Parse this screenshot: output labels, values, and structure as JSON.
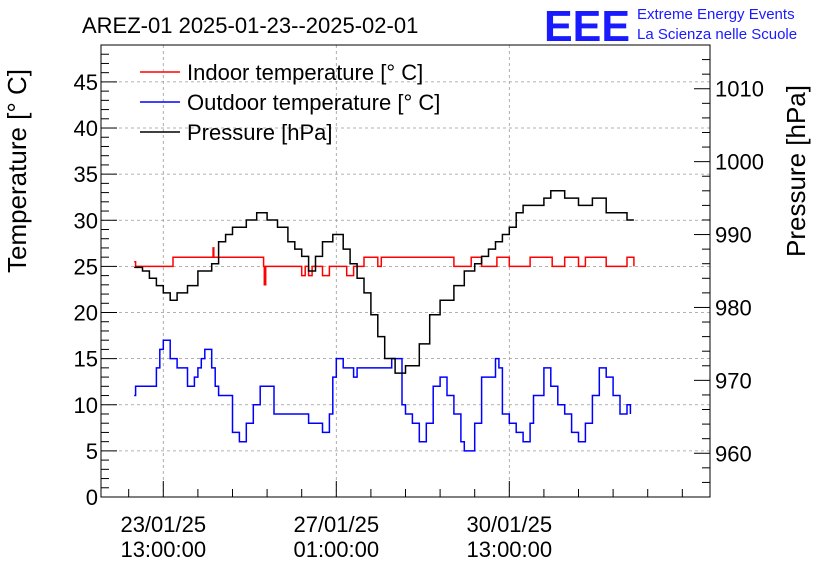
{
  "title": "AREZ-01 2025-01-23--2025-02-01",
  "logo": {
    "mark": "EEE",
    "line1": "Extreme Energy Events",
    "line2": "La Scienza nelle Scuole",
    "color": "#1a1aff"
  },
  "chart_data": {
    "type": "line",
    "title": "AREZ-01 2025-01-23--2025-02-01",
    "ylabel": "Temperature [° C]",
    "y2label": "Pressure [hPa]",
    "xlabel": "",
    "ylim": [
      0,
      49
    ],
    "y2lim": [
      954,
      1016
    ],
    "xlim_days": [
      -0.9,
      7.9
    ],
    "yticks": [
      0,
      5,
      10,
      15,
      20,
      25,
      30,
      35,
      40,
      45
    ],
    "y2ticks": [
      960,
      970,
      980,
      990,
      1000,
      1010
    ],
    "xticks": [
      {
        "day": 0,
        "label1": "23/01/25",
        "label2": "13:00:00"
      },
      {
        "day": 2.5,
        "label1": "27/01/25",
        "label2": "01:00:00"
      },
      {
        "day": 5,
        "label1": "30/01/25",
        "label2": "13:00:00"
      }
    ],
    "grid": true,
    "legend_position": "top-left",
    "series": [
      {
        "name": "Indoor temperature [° C]",
        "color": "#ff0000",
        "axis": "left",
        "x": [
          -0.42,
          -0.4,
          0.1,
          0.14,
          0.7,
          0.72,
          0.73,
          0.75,
          1.05,
          1.1,
          1.4,
          1.45,
          1.46,
          1.48,
          1.6,
          2.0,
          2.05,
          2.1,
          2.15,
          2.25,
          2.3,
          2.4,
          2.45,
          2.6,
          2.65,
          2.75,
          2.85,
          2.9,
          3.05,
          3.1,
          3.15,
          3.2,
          3.5,
          3.55,
          3.6,
          3.65,
          3.9,
          4.1,
          4.2,
          4.4,
          4.45,
          4.55,
          4.6,
          4.8,
          4.82,
          4.95,
          5.0,
          5.2,
          5.3,
          5.6,
          5.62,
          5.75,
          5.8,
          5.9,
          6.0,
          6.05,
          6.1,
          6.35,
          6.4,
          6.65,
          6.7,
          6.75,
          6.8
        ],
        "y": [
          25.5,
          25,
          25,
          26,
          26,
          27,
          26,
          26,
          26,
          26,
          26,
          25,
          23,
          25,
          25,
          24,
          25,
          24,
          25,
          25,
          24,
          25,
          25,
          25,
          24,
          25,
          25,
          26,
          26,
          25,
          26,
          26,
          26,
          26,
          26,
          26,
          26,
          26,
          25,
          25,
          26,
          26,
          25,
          25,
          26,
          26,
          25,
          25,
          26,
          26,
          25,
          25,
          26,
          26,
          25,
          25,
          26,
          26,
          25,
          25,
          26,
          26,
          25
        ]
      },
      {
        "name": "Outdoor temperature [° C]",
        "color": "#0000ff",
        "axis": "left",
        "x": [
          -0.42,
          -0.4,
          -0.2,
          -0.1,
          -0.05,
          0.0,
          0.1,
          0.2,
          0.3,
          0.35,
          0.45,
          0.5,
          0.55,
          0.6,
          0.7,
          0.75,
          0.8,
          1.0,
          1.1,
          1.2,
          1.3,
          1.4,
          1.5,
          1.6,
          1.8,
          2.0,
          2.1,
          2.3,
          2.4,
          2.45,
          2.5,
          2.6,
          2.7,
          2.75,
          2.8,
          3.0,
          3.3,
          3.45,
          3.5,
          3.6,
          3.7,
          3.8,
          3.9,
          4.0,
          4.1,
          4.2,
          4.3,
          4.35,
          4.5,
          4.6,
          4.8,
          4.85,
          4.9,
          5.0,
          5.1,
          5.2,
          5.3,
          5.35,
          5.5,
          5.6,
          5.7,
          5.8,
          5.9,
          6.0,
          6.1,
          6.2,
          6.3,
          6.4,
          6.5,
          6.6,
          6.7,
          6.75
        ],
        "y": [
          11,
          12,
          12,
          14,
          16,
          17,
          15,
          14,
          14,
          12,
          13,
          14,
          15,
          16,
          14,
          12,
          11,
          7,
          6,
          8,
          10,
          12,
          12,
          9,
          9,
          9,
          8,
          7,
          9,
          13,
          15,
          14,
          14,
          13,
          14,
          14,
          15,
          10,
          9,
          8,
          6,
          8,
          12,
          13,
          11,
          9,
          6,
          5,
          8,
          13,
          15,
          14,
          9,
          8,
          7,
          6,
          8,
          11,
          14,
          12,
          10,
          9,
          7,
          6,
          8,
          11,
          14,
          13,
          11,
          9,
          10,
          9
        ]
      },
      {
        "name": "Pressure [hPa]",
        "color": "#000000",
        "axis": "right",
        "x": [
          -0.42,
          -0.3,
          -0.2,
          -0.1,
          0.0,
          0.1,
          0.2,
          0.35,
          0.5,
          0.7,
          0.8,
          0.9,
          1.0,
          1.2,
          1.35,
          1.5,
          1.65,
          1.8,
          1.9,
          2.0,
          2.1,
          2.2,
          2.3,
          2.45,
          2.6,
          2.7,
          2.8,
          2.9,
          3.0,
          3.1,
          3.2,
          3.35,
          3.5,
          3.7,
          3.85,
          4.0,
          4.2,
          4.35,
          4.5,
          4.6,
          4.7,
          4.8,
          4.9,
          5.0,
          5.1,
          5.2,
          5.4,
          5.5,
          5.6,
          5.8,
          6.0,
          6.2,
          6.4,
          6.55,
          6.7,
          6.8
        ],
        "y": [
          985.5,
          985,
          984,
          983,
          982,
          981,
          982,
          983,
          985,
          986,
          989,
          990,
          991,
          992,
          993,
          992,
          991,
          989,
          988,
          987,
          985,
          987,
          989,
          990,
          988,
          986,
          984,
          982,
          979,
          976,
          973,
          971,
          972,
          975,
          979,
          981,
          983,
          985,
          986,
          987,
          988,
          989,
          990,
          991,
          993,
          994,
          994,
          995,
          996,
          995,
          994,
          995,
          993,
          993,
          992,
          992
        ]
      }
    ]
  }
}
